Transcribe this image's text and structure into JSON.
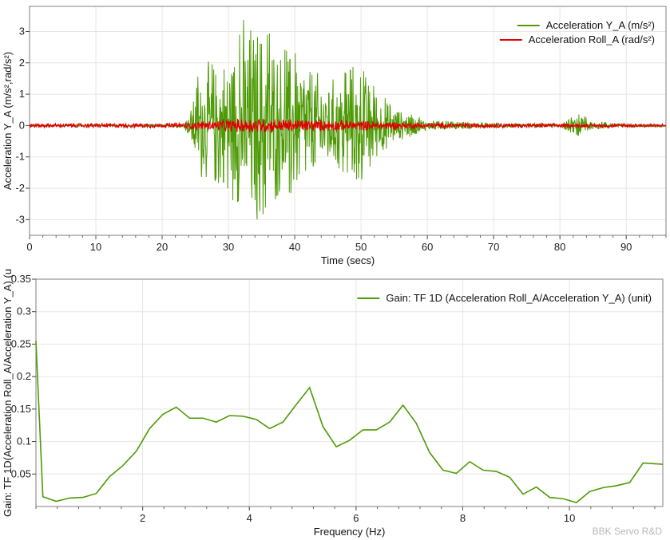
{
  "watermark": "BBK Servo R&D",
  "chart_data": [
    {
      "type": "line",
      "xlabel": "Time (secs)",
      "ylabel": "Acceleration Y_A (m/s²,rad/s²)",
      "xlim": [
        0,
        96
      ],
      "ylim": [
        -3.5,
        3.8
      ],
      "xticks": [
        0,
        10,
        20,
        30,
        40,
        50,
        60,
        70,
        80,
        90
      ],
      "yticks": [
        -3,
        -2,
        -1,
        0,
        1,
        2,
        3
      ],
      "grid": true,
      "legend": "top-right",
      "series": [
        {
          "name": "Acceleration Y_A (m/s²)",
          "color": "#4e9a06",
          "envelope_x": [
            0,
            10,
            20,
            23,
            24,
            25,
            26,
            28,
            30,
            32,
            33,
            34,
            36,
            38,
            40,
            42,
            44,
            46,
            48,
            50,
            52,
            54,
            56,
            58,
            60,
            65,
            70,
            75,
            80,
            83,
            85,
            90,
            96
          ],
          "envelope_amp": [
            0.03,
            0.03,
            0.04,
            0.08,
            0.35,
            1.4,
            2.0,
            2.1,
            2.4,
            3.3,
            3.6,
            3.6,
            3.1,
            2.5,
            2.5,
            2.2,
            1.7,
            1.6,
            1.8,
            2.0,
            1.3,
            0.8,
            0.5,
            0.35,
            0.18,
            0.12,
            0.08,
            0.07,
            0.07,
            0.4,
            0.15,
            0.06,
            0.04
          ]
        },
        {
          "name": "Acceleration Roll_A (rad/s²)",
          "color": "#e00000",
          "envelope_x": [
            0,
            20,
            23,
            26,
            30,
            34,
            38,
            42,
            46,
            50,
            55,
            60,
            70,
            80,
            96
          ],
          "envelope_amp": [
            0.08,
            0.08,
            0.1,
            0.16,
            0.22,
            0.28,
            0.25,
            0.22,
            0.2,
            0.18,
            0.14,
            0.1,
            0.08,
            0.07,
            0.06
          ]
        }
      ]
    },
    {
      "type": "line",
      "xlabel": "Frequency (Hz)",
      "ylabel": "Gain: TF 1D(Acceleration Roll_A/Acceleration Y_A) (u",
      "xlim": [
        0,
        11.75
      ],
      "ylim": [
        0,
        0.35
      ],
      "xticks": [
        2,
        4,
        6,
        8,
        10
      ],
      "yticks": [
        0.05,
        0.1,
        0.15,
        0.2,
        0.25,
        0.3,
        0.35
      ],
      "grid": true,
      "legend": "top-right",
      "series": [
        {
          "name": "Gain: TF 1D (Acceleration Roll_A/Acceleration Y_A) (unit)",
          "color": "#4e9a06",
          "x": [
            0,
            0.13,
            0.38,
            0.63,
            0.88,
            1.13,
            1.38,
            1.63,
            1.88,
            2.13,
            2.38,
            2.63,
            2.88,
            3.13,
            3.38,
            3.63,
            3.88,
            4.13,
            4.38,
            4.63,
            4.88,
            5.13,
            5.38,
            5.63,
            5.88,
            6.13,
            6.38,
            6.63,
            6.88,
            7.13,
            7.38,
            7.63,
            7.88,
            8.13,
            8.38,
            8.63,
            8.88,
            9.13,
            9.38,
            9.63,
            9.88,
            10.13,
            10.38,
            10.63,
            10.88,
            11.13,
            11.38,
            11.75
          ],
          "values": [
            0.255,
            0.015,
            0.008,
            0.013,
            0.014,
            0.02,
            0.046,
            0.063,
            0.085,
            0.12,
            0.142,
            0.153,
            0.136,
            0.136,
            0.13,
            0.14,
            0.139,
            0.134,
            0.12,
            0.13,
            0.157,
            0.183,
            0.123,
            0.092,
            0.102,
            0.118,
            0.118,
            0.13,
            0.156,
            0.128,
            0.083,
            0.056,
            0.051,
            0.069,
            0.056,
            0.054,
            0.045,
            0.019,
            0.03,
            0.014,
            0.012,
            0.006,
            0.023,
            0.029,
            0.032,
            0.037,
            0.067,
            0.065
          ]
        }
      ]
    }
  ]
}
